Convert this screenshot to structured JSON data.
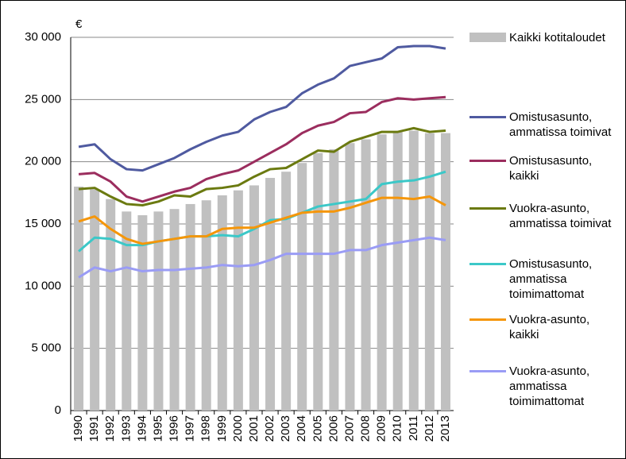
{
  "chart_data": {
    "type": "bar_line",
    "y_label": "€",
    "categories": [
      "1990",
      "1991",
      "1992",
      "1993",
      "1994",
      "1995",
      "1996",
      "1997",
      "1998",
      "1999",
      "2000",
      "2001",
      "2002",
      "2003",
      "2004",
      "2005",
      "2006",
      "2007",
      "2008",
      "2009",
      "2010",
      "2011",
      "2012",
      "2013"
    ],
    "ylim": [
      0,
      30000
    ],
    "yticks": [
      0,
      {
        "value": 5000,
        "label": "5 000"
      },
      {
        "value": 10000,
        "label": "10 000"
      },
      {
        "value": 15000,
        "label": "15 000"
      },
      {
        "value": 20000,
        "label": "20 000"
      },
      {
        "value": 25000,
        "label": "25 000"
      },
      {
        "value": 30000,
        "label": "30 000"
      }
    ],
    "grid": true,
    "series": [
      {
        "name": "Kaikki kotitaloudet",
        "type": "bar",
        "color": "#c0c0c0",
        "values": [
          18000,
          17800,
          17000,
          16000,
          15700,
          16000,
          16200,
          16600,
          16900,
          17300,
          17700,
          18100,
          18700,
          19200,
          19900,
          20700,
          21000,
          21500,
          21800,
          22200,
          22400,
          22500,
          22300,
          22300
        ]
      },
      {
        "name": "Omistusasunto, ammatissa toimivat",
        "type": "line",
        "color": "#4f5aa0",
        "values": [
          21200,
          21400,
          20200,
          19400,
          19300,
          19800,
          20300,
          21000,
          21600,
          22100,
          22400,
          23400,
          24000,
          24400,
          25500,
          26200,
          26700,
          27700,
          28000,
          28300,
          29200,
          29300,
          29300,
          29100
        ]
      },
      {
        "name": "Omistusasunto, kaikki",
        "type": "line",
        "color": "#9b2d5e",
        "values": [
          19000,
          19100,
          18400,
          17200,
          16800,
          17200,
          17600,
          17900,
          18600,
          19000,
          19300,
          20000,
          20700,
          21400,
          22300,
          22900,
          23200,
          23900,
          24000,
          24800,
          25100,
          25000,
          25100,
          25200
        ]
      },
      {
        "name": "Vuokra-asunto, ammatissa toimivat",
        "type": "line",
        "color": "#6b7a10",
        "values": [
          17800,
          17900,
          17200,
          16600,
          16500,
          16800,
          17300,
          17200,
          17800,
          17900,
          18100,
          18800,
          19400,
          19500,
          20200,
          20900,
          20800,
          21600,
          22000,
          22400,
          22400,
          22700,
          22400,
          22500
        ]
      },
      {
        "name": "Omistusasunto, ammatissa toimimattomat",
        "type": "line",
        "color": "#3cc8c8",
        "values": [
          12800,
          13900,
          13800,
          13300,
          13300,
          13600,
          13800,
          14000,
          14000,
          14100,
          14000,
          14600,
          15300,
          15400,
          15900,
          16400,
          16600,
          16800,
          17000,
          18200,
          18400,
          18500,
          18800,
          19200
        ]
      },
      {
        "name": "Vuokra-asunto, kaikki",
        "type": "line",
        "color": "#f5960a",
        "values": [
          15200,
          15600,
          14600,
          13800,
          13400,
          13600,
          13800,
          14000,
          14000,
          14600,
          14700,
          14700,
          15100,
          15500,
          15900,
          16000,
          16000,
          16300,
          16700,
          17100,
          17100,
          17000,
          17200,
          16500
        ]
      },
      {
        "name": "Vuokra-asunto, ammatissa toimimattomat",
        "type": "line",
        "color": "#9a9cf5",
        "values": [
          10700,
          11500,
          11200,
          11500,
          11200,
          11300,
          11300,
          11400,
          11500,
          11700,
          11600,
          11700,
          12100,
          12600,
          12600,
          12600,
          12600,
          12900,
          12900,
          13300,
          13500,
          13700,
          13900,
          13700
        ]
      }
    ]
  }
}
